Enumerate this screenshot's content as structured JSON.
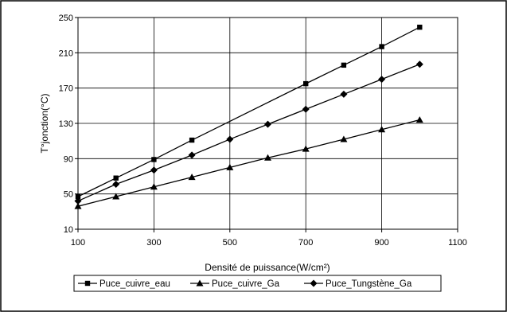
{
  "chart_data": {
    "type": "line",
    "title": "",
    "xlabel": "Densité de puissance(W/cm²)",
    "ylabel": "T°jonction(°C)",
    "xlim": [
      100,
      1100
    ],
    "ylim": [
      10,
      250
    ],
    "xticks": [
      100,
      300,
      500,
      700,
      900,
      1100
    ],
    "yticks": [
      10,
      50,
      90,
      130,
      170,
      210,
      250
    ],
    "grid": "vertical-and-horizontal",
    "legend_position": "bottom",
    "series": [
      {
        "name": "Puce_cuivre_eau",
        "marker": "square",
        "x": [
          100,
          200,
          300,
          400,
          700,
          800,
          900,
          1000
        ],
        "y": [
          47,
          68,
          89,
          111,
          175,
          196,
          217,
          239
        ]
      },
      {
        "name": "Puce_cuivre_Ga",
        "marker": "triangle",
        "x": [
          100,
          200,
          300,
          400,
          500,
          600,
          700,
          800,
          900,
          1000
        ],
        "y": [
          36,
          47,
          58,
          69,
          80,
          91,
          101,
          112,
          123,
          134
        ]
      },
      {
        "name": "Puce_Tungstène_Ga",
        "marker": "diamond",
        "x": [
          100,
          200,
          300,
          400,
          500,
          600,
          700,
          800,
          900,
          1000
        ],
        "y": [
          42,
          61,
          77,
          94,
          112,
          129,
          146,
          163,
          180,
          197
        ]
      }
    ]
  }
}
